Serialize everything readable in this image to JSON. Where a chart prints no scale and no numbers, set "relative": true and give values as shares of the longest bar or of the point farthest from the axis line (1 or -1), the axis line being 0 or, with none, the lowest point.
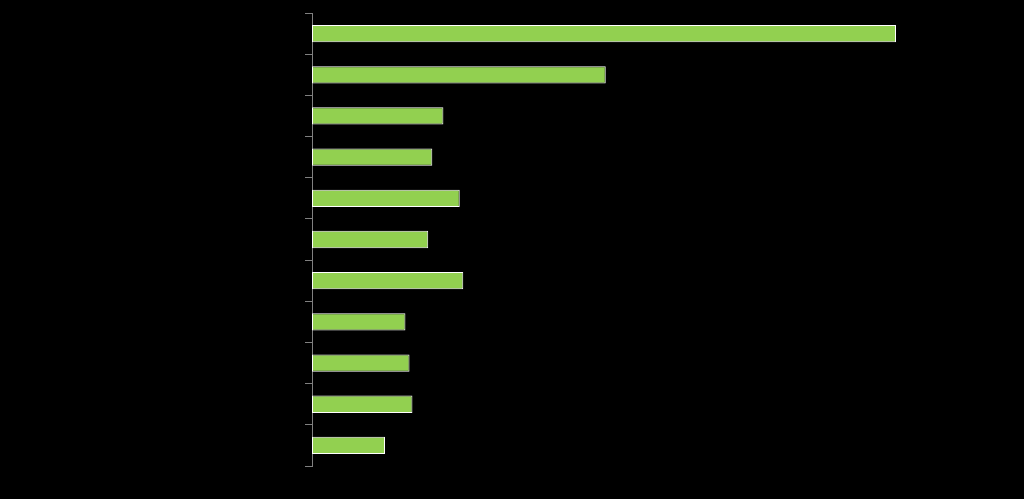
{
  "chart_data": {
    "type": "bar",
    "orientation": "horizontal",
    "relative": true,
    "categories": [
      null,
      null,
      null,
      null,
      null,
      null,
      null,
      null,
      null,
      null,
      null
    ],
    "values": [
      1,
      0.503,
      0.225,
      0.206,
      0.253,
      0.199,
      0.259,
      0.16,
      0.167,
      0.172,
      0.125
    ],
    "color": "#92d050",
    "grid": false,
    "legend": false
  }
}
